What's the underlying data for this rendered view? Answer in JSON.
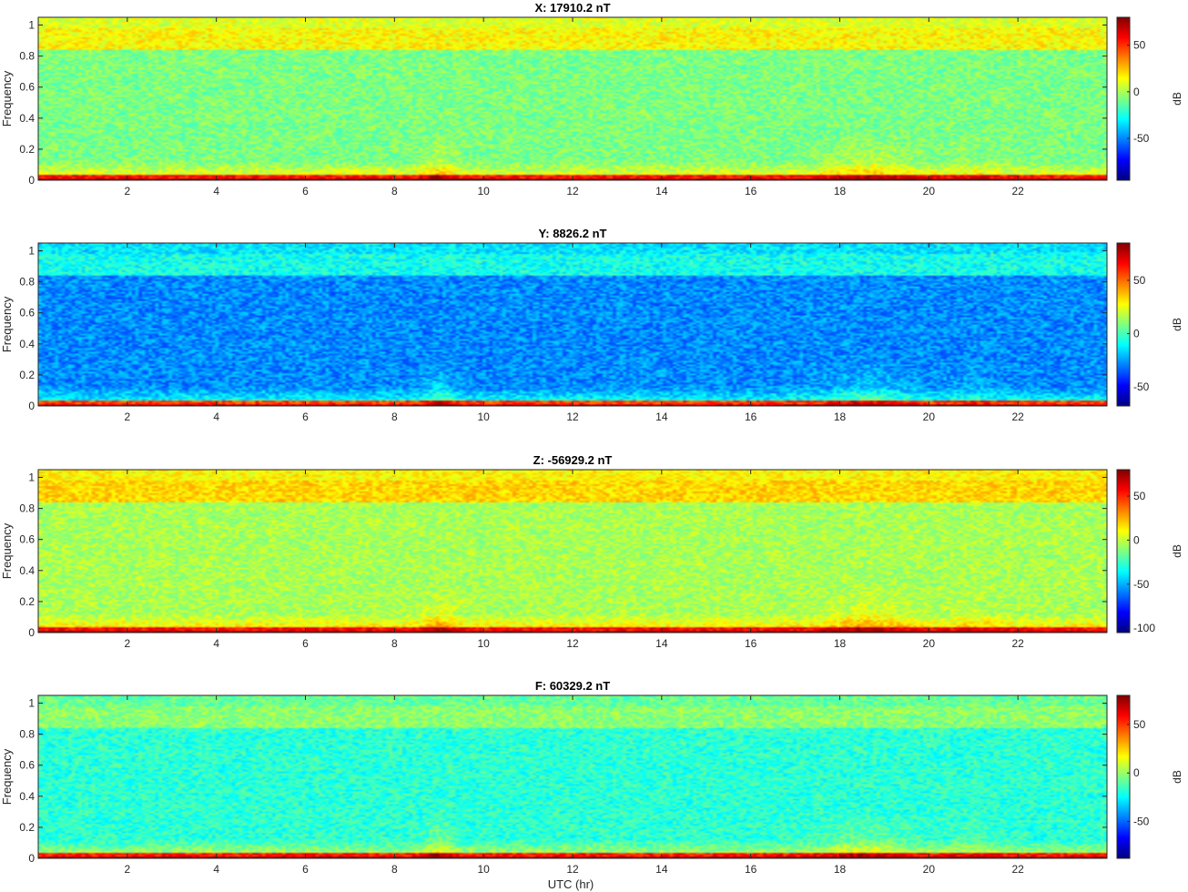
{
  "figure": {
    "xlabel_bottom": "UTC (hr)"
  },
  "chart_data": [
    {
      "type": "heatmap",
      "title": "X: 17910.2 nT",
      "ylabel": "Frequency",
      "xlabel": "",
      "xlim": [
        0,
        24
      ],
      "ylim": [
        0,
        1.05
      ],
      "xticks": [
        2,
        4,
        6,
        8,
        10,
        12,
        14,
        16,
        18,
        20,
        22
      ],
      "yticks": [
        0,
        0.2,
        0.4,
        0.6,
        0.8,
        1
      ],
      "colorbar": {
        "label": "dB",
        "ticks": [
          50,
          0,
          -50
        ],
        "range": [
          -95,
          80
        ]
      },
      "grid": false,
      "background_db": -8,
      "band_0p9_db": 15
    },
    {
      "type": "heatmap",
      "title": "Y: 8826.2 nT",
      "ylabel": "Frequency",
      "xlabel": "",
      "xlim": [
        0,
        24
      ],
      "ylim": [
        0,
        1.05
      ],
      "xticks": [
        2,
        4,
        6,
        8,
        10,
        12,
        14,
        16,
        18,
        20,
        22
      ],
      "yticks": [
        0,
        0.2,
        0.4,
        0.6,
        0.8,
        1
      ],
      "colorbar": {
        "label": "dB",
        "ticks": [
          50,
          0,
          -50
        ],
        "range": [
          -68,
          85
        ]
      },
      "grid": false,
      "background_db": -28,
      "band_0p9_db": -8
    },
    {
      "type": "heatmap",
      "title": "Z: -56929.2 nT",
      "ylabel": "Frequency",
      "xlabel": "",
      "xlim": [
        0,
        24
      ],
      "ylim": [
        0,
        1.05
      ],
      "xticks": [
        2,
        4,
        6,
        8,
        10,
        12,
        14,
        16,
        18,
        20,
        22
      ],
      "yticks": [
        0,
        0.2,
        0.4,
        0.6,
        0.8,
        1
      ],
      "colorbar": {
        "label": "dB",
        "ticks": [
          50,
          0,
          -50,
          -100
        ],
        "range": [
          -105,
          80
        ]
      },
      "grid": false,
      "background_db": -5,
      "band_0p9_db": 18
    },
    {
      "type": "heatmap",
      "title": "F: 60329.2 nT",
      "ylabel": "Frequency",
      "xlabel": "UTC (hr)",
      "xlim": [
        0,
        24
      ],
      "ylim": [
        0,
        1.05
      ],
      "xticks": [
        2,
        4,
        6,
        8,
        10,
        12,
        14,
        16,
        18,
        20,
        22
      ],
      "yticks": [
        0,
        0.2,
        0.4,
        0.6,
        0.8,
        1
      ],
      "colorbar": {
        "label": "dB",
        "ticks": [
          50,
          0,
          -50
        ],
        "range": [
          -88,
          80
        ]
      },
      "grid": false,
      "background_db": -18,
      "band_0p9_db": -2
    }
  ]
}
